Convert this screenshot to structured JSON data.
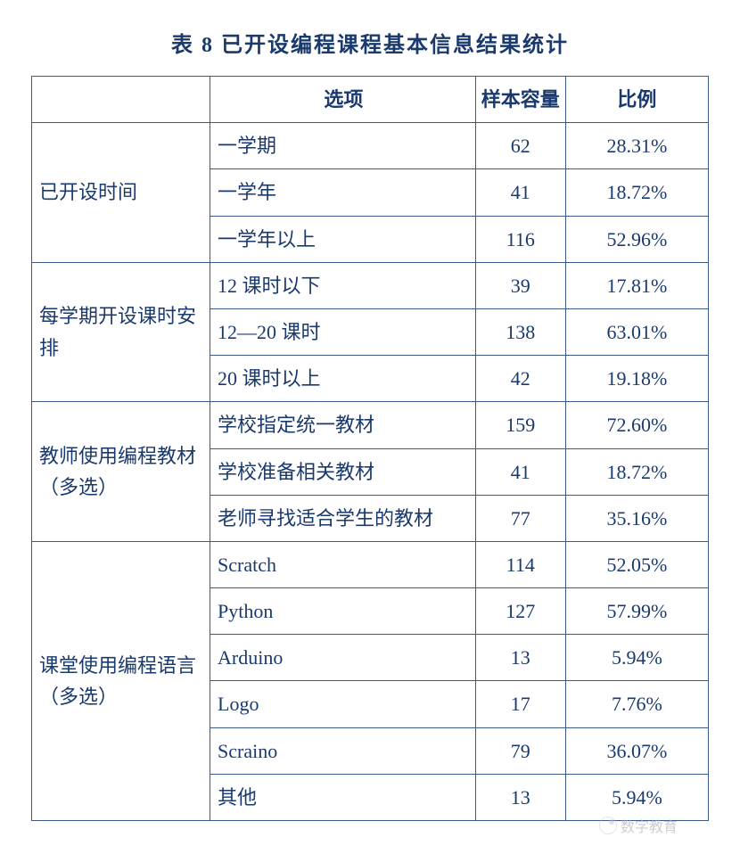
{
  "title": "表 8  已开设编程课程基本信息结果统计",
  "headers": {
    "category_blank": "",
    "option": "选项",
    "sample": "样本容量",
    "ratio": "比例"
  },
  "groups": [
    {
      "category": "已开设时间",
      "rows": [
        {
          "option": "一学期",
          "sample": "62",
          "ratio": "28.31%"
        },
        {
          "option": "一学年",
          "sample": "41",
          "ratio": "18.72%"
        },
        {
          "option": "一学年以上",
          "sample": "116",
          "ratio": "52.96%"
        }
      ]
    },
    {
      "category": "每学期开设课时安排",
      "rows": [
        {
          "option": "12 课时以下",
          "sample": "39",
          "ratio": "17.81%"
        },
        {
          "option": "12—20 课时",
          "sample": "138",
          "ratio": "63.01%"
        },
        {
          "option": "20 课时以上",
          "sample": "42",
          "ratio": "19.18%"
        }
      ]
    },
    {
      "category": "教师使用编程教材（多选）",
      "rows": [
        {
          "option": "学校指定统一教材",
          "sample": "159",
          "ratio": "72.60%"
        },
        {
          "option": "学校准备相关教材",
          "sample": "41",
          "ratio": "18.72%"
        },
        {
          "option": "老师寻找适合学生的教材",
          "sample": "77",
          "ratio": "35.16%"
        }
      ]
    },
    {
      "category": "课堂使用编程语言（多选）",
      "rows": [
        {
          "option": "Scratch",
          "sample": "114",
          "ratio": "52.05%"
        },
        {
          "option": "Python",
          "sample": "127",
          "ratio": "57.99%"
        },
        {
          "option": "Arduino",
          "sample": "13",
          "ratio": "5.94%"
        },
        {
          "option": "Logo",
          "sample": "17",
          "ratio": "7.76%"
        },
        {
          "option": "Scraino",
          "sample": "79",
          "ratio": "36.07%"
        },
        {
          "option": "其他",
          "sample": "13",
          "ratio": "5.94%"
        }
      ]
    }
  ],
  "watermark": "数字教育",
  "colors": {
    "text": "#1a3a6e",
    "border": "#3a5a8a",
    "background": "#ffffff",
    "watermark": "#b8b8b8"
  }
}
